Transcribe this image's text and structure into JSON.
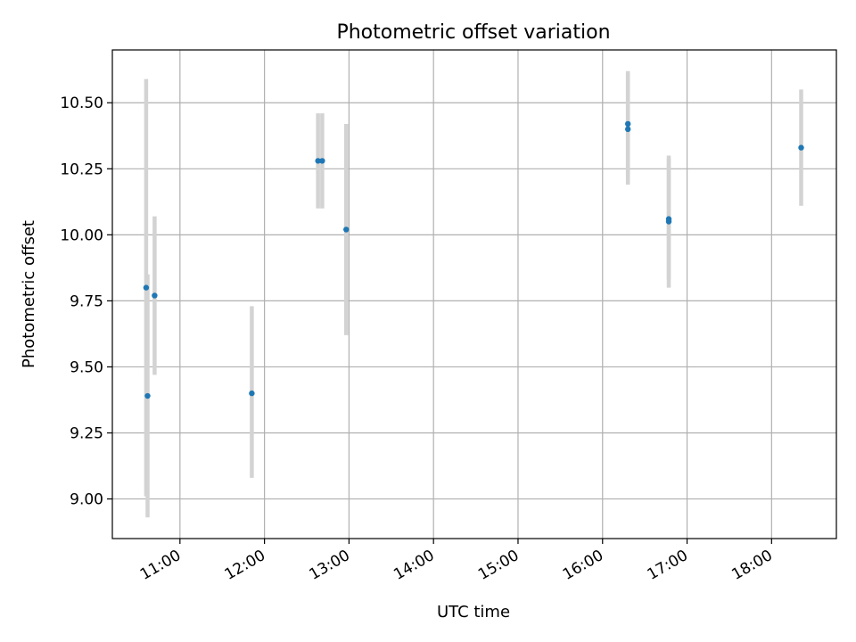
{
  "chart_data": {
    "type": "scatter",
    "title": "Photometric offset variation",
    "xlabel": "UTC time",
    "ylabel": "Photometric offset",
    "x_tick_labels": [
      "11:00",
      "12:00",
      "13:00",
      "14:00",
      "15:00",
      "16:00",
      "17:00",
      "18:00"
    ],
    "x_ticks": [
      "11:00",
      "12:00",
      "13:00",
      "14:00",
      "15:00",
      "16:00",
      "17:00",
      "18:00"
    ],
    "y_tick_labels": [
      "9.00",
      "9.25",
      "9.50",
      "9.75",
      "10.00",
      "10.25",
      "10.50"
    ],
    "y_ticks": [
      9.0,
      9.25,
      9.5,
      9.75,
      10.0,
      10.25,
      10.5
    ],
    "xlim": [
      "10:12",
      "18:46"
    ],
    "ylim": [
      8.85,
      10.7
    ],
    "grid": true,
    "colors": {
      "point": "#1f77b4",
      "errorbar": "#d3d3d3",
      "grid": "#b0b0b0"
    },
    "points": [
      {
        "x": "10:36",
        "y": 9.8,
        "ylow": 9.01,
        "yhigh": 10.59
      },
      {
        "x": "10:37",
        "y": 9.39,
        "ylow": 8.93,
        "yhigh": 9.85
      },
      {
        "x": "10:42",
        "y": 9.77,
        "ylow": 9.47,
        "yhigh": 10.07
      },
      {
        "x": "11:51",
        "y": 9.4,
        "ylow": 9.08,
        "yhigh": 9.73
      },
      {
        "x": "12:38",
        "y": 10.28,
        "ylow": 10.1,
        "yhigh": 10.46
      },
      {
        "x": "12:41",
        "y": 10.28,
        "ylow": 10.1,
        "yhigh": 10.46
      },
      {
        "x": "12:58",
        "y": 10.02,
        "ylow": 9.62,
        "yhigh": 10.42
      },
      {
        "x": "16:18",
        "y": 10.42,
        "ylow": 10.22,
        "yhigh": 10.62
      },
      {
        "x": "16:18",
        "y": 10.4,
        "ylow": 10.19,
        "yhigh": 10.61
      },
      {
        "x": "16:47",
        "y": 10.06,
        "ylow": 9.83,
        "yhigh": 10.29
      },
      {
        "x": "16:47",
        "y": 10.05,
        "ylow": 9.8,
        "yhigh": 10.3
      },
      {
        "x": "18:21",
        "y": 10.33,
        "ylow": 10.11,
        "yhigh": 10.55
      }
    ]
  }
}
